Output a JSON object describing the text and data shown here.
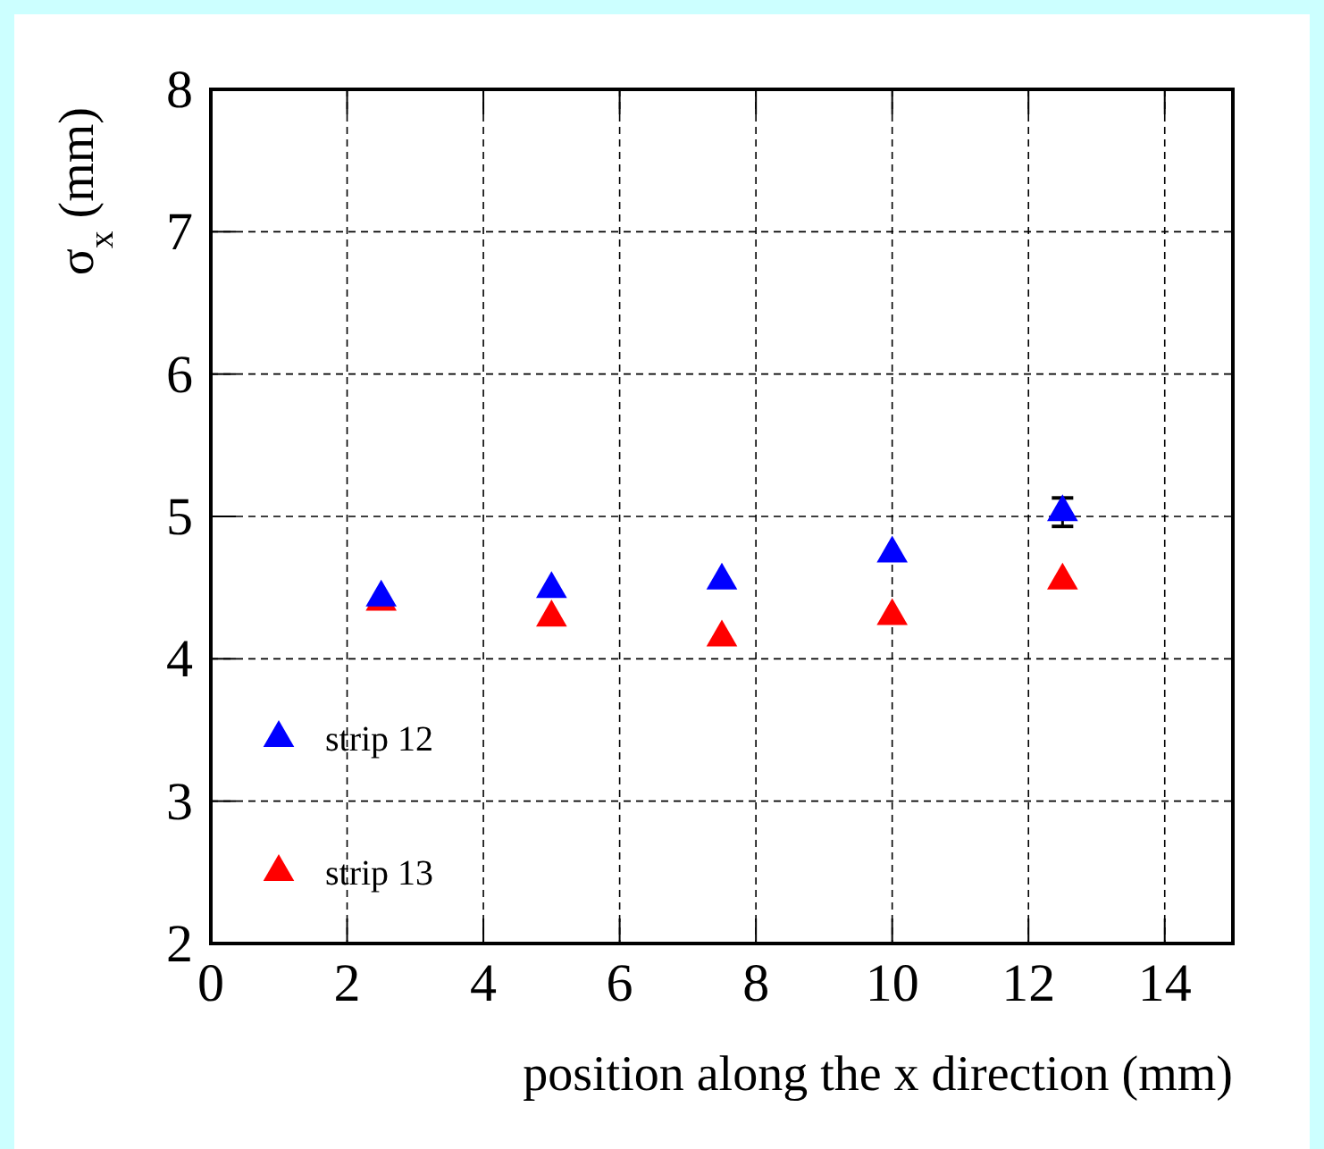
{
  "chart_data": {
    "type": "scatter",
    "xlabel": "position along the x direction (mm)",
    "ylabel": "σ$_{x}$ (mm)",
    "x": [
      2.5,
      5,
      7.5,
      10,
      12.5
    ],
    "series": [
      {
        "name": "strip 12",
        "color": "#0000ff",
        "values": [
          4.43,
          4.49,
          4.55,
          4.74,
          5.03
        ],
        "errors": [
          null,
          null,
          null,
          null,
          0.1
        ]
      },
      {
        "name": "strip 13",
        "color": "#ff0000",
        "values": [
          4.4,
          4.29,
          4.15,
          4.3,
          4.55
        ]
      }
    ],
    "xlim": [
      0,
      15
    ],
    "xticks": [
      0,
      2,
      4,
      6,
      8,
      10,
      12,
      14
    ],
    "ylim": [
      2,
      8
    ],
    "yticks": [
      2,
      3,
      4,
      5,
      6,
      7,
      8
    ],
    "grid": true,
    "legend": "bottom left",
    "marker": "triangle"
  }
}
